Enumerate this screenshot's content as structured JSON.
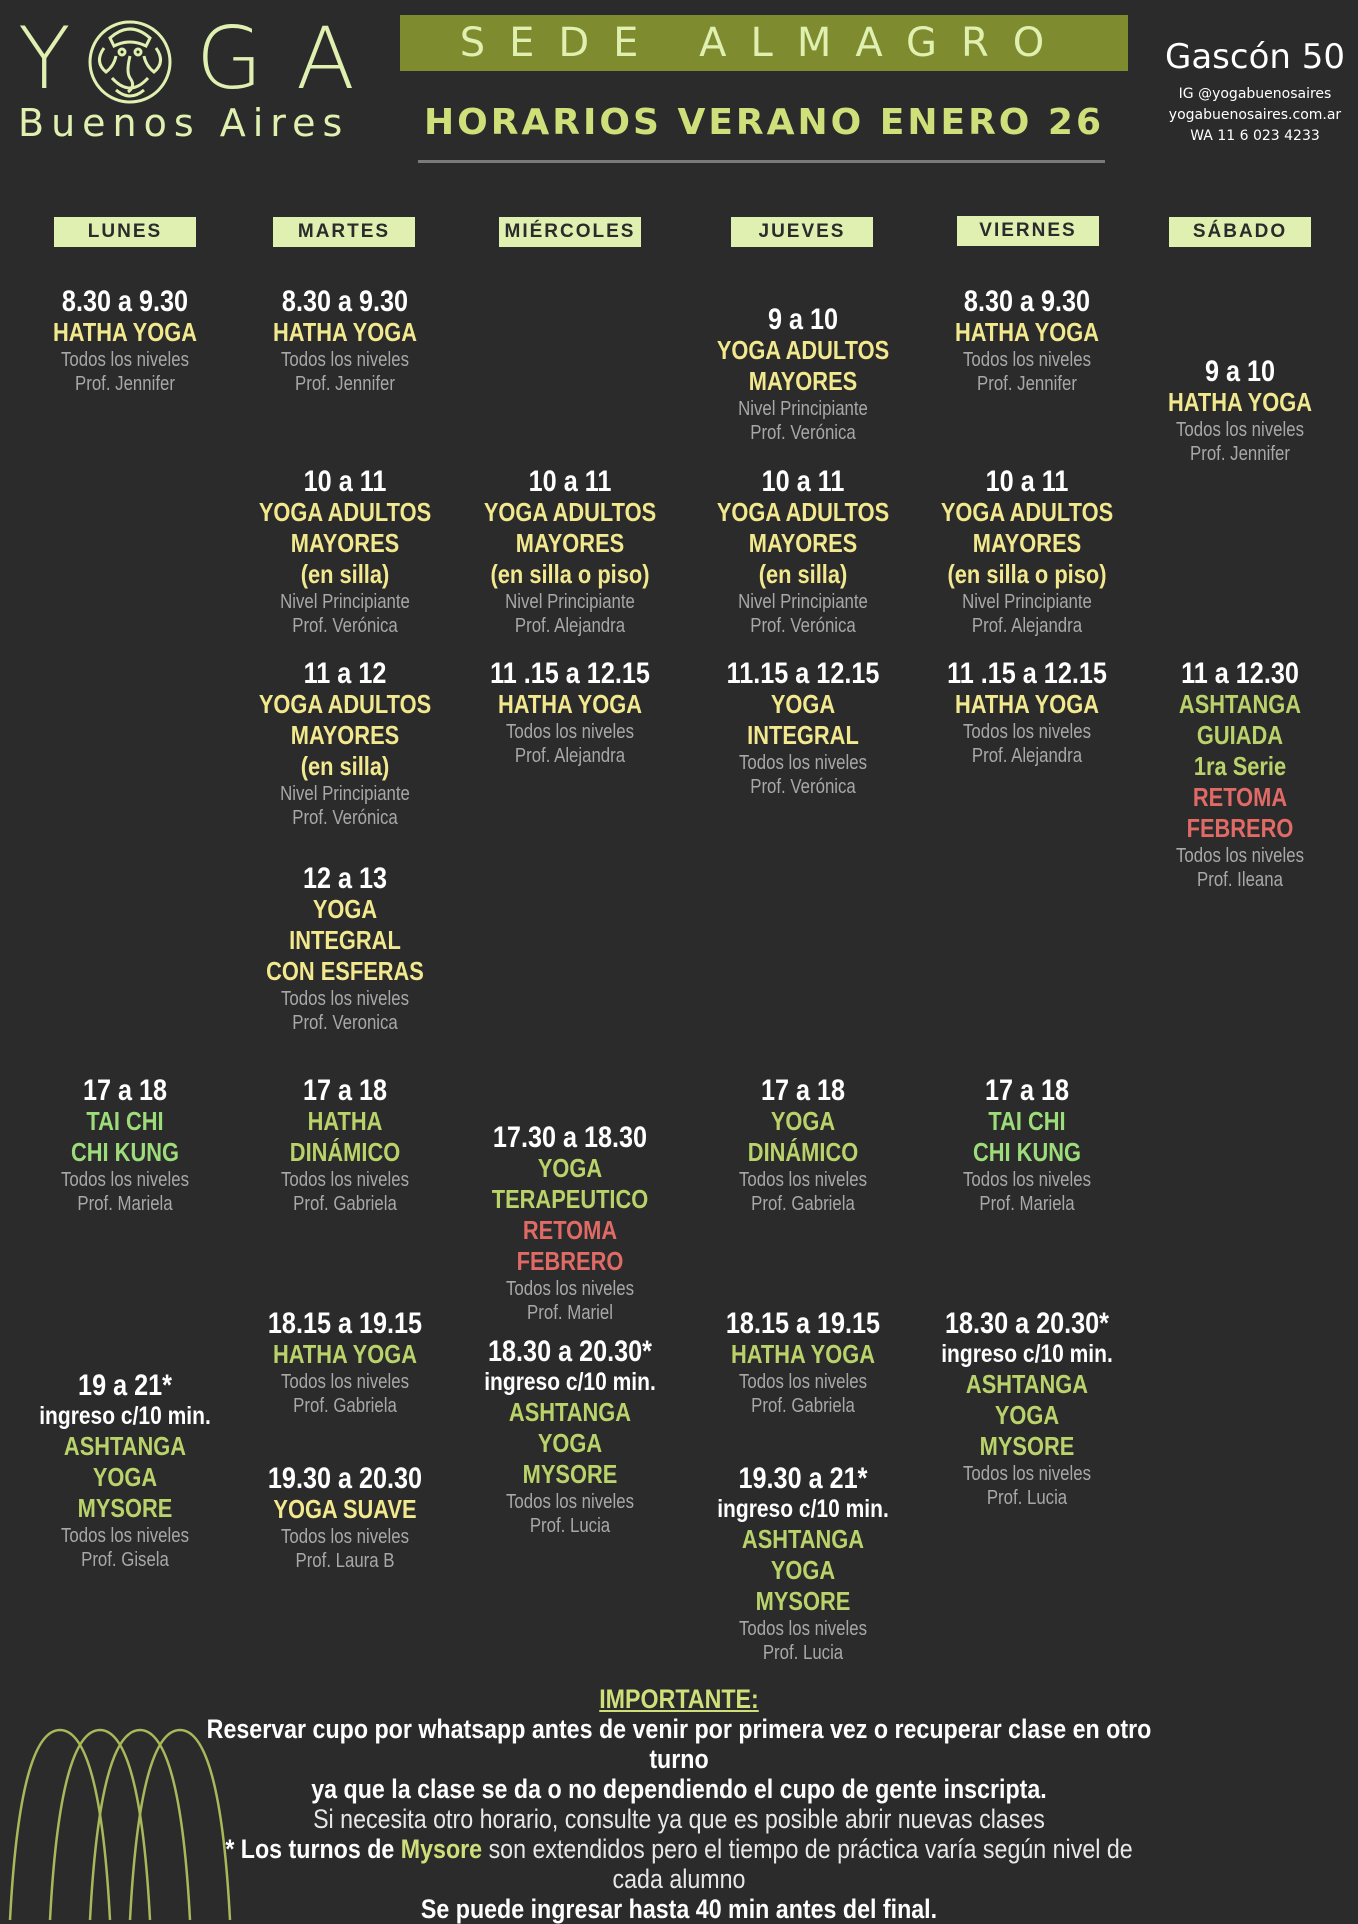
{
  "header": {
    "logo_letters": [
      "Y",
      "G",
      "A"
    ],
    "logo_city": "Buenos Aires",
    "sede": "SEDE ALMAGRO",
    "title": "HORARIOS VERANO ENERO 26",
    "address": "Gascón 50",
    "instagram": "IG @yogabuenosaires",
    "website": "yogabuenosaires.com.ar",
    "whatsapp": "WA 11 6 023 4233"
  },
  "days": [
    "LUNES",
    "MARTES",
    "MIÉRCOLES",
    "JUEVES",
    "VIERNES",
    "SÁBADO"
  ],
  "classes": {
    "lun_1": {
      "time": "8.30 a 9.30",
      "name": [
        "HATHA YOGA"
      ],
      "level": "Todos los niveles",
      "prof": "Prof. Jennifer"
    },
    "lun_2": {
      "time": "17 a 18",
      "name": [
        "TAI CHI",
        "CHI KUNG"
      ],
      "level": "Todos los niveles",
      "prof": "Prof. Mariela"
    },
    "lun_3": {
      "time": "19 a 21*",
      "entry": "ingreso c/10 min.",
      "name": [
        "ASHTANGA YOGA",
        "MYSORE"
      ],
      "level": "Todos los niveles",
      "prof": "Prof. Gisela"
    },
    "mar_1": {
      "time": "8.30 a 9.30",
      "name": [
        "HATHA YOGA"
      ],
      "level": "Todos los niveles",
      "prof": "Prof. Jennifer"
    },
    "mar_2": {
      "time": "10 a 11",
      "name": [
        "YOGA ADULTOS",
        "MAYORES",
        "(en silla)"
      ],
      "level": "Nivel Principiante",
      "prof": "Prof. Verónica"
    },
    "mar_3": {
      "time": "11 a 12",
      "name": [
        "YOGA ADULTOS",
        "MAYORES",
        "(en silla)"
      ],
      "level": "Nivel Principiante",
      "prof": "Prof. Verónica"
    },
    "mar_4": {
      "time": "12 a 13",
      "name": [
        "YOGA INTEGRAL",
        "CON ESFERAS"
      ],
      "level": "Todos los niveles",
      "prof": "Prof. Veronica"
    },
    "mar_5": {
      "time": "17 a 18",
      "name": [
        "HATHA DINÁMICO"
      ],
      "level": "Todos los niveles",
      "prof": "Prof. Gabriela"
    },
    "mar_6": {
      "time": "18.15 a 19.15",
      "name": [
        "HATHA YOGA"
      ],
      "level": "Todos los niveles",
      "prof": "Prof. Gabriela"
    },
    "mar_7": {
      "time": "19.30 a 20.30",
      "name": [
        "YOGA SUAVE"
      ],
      "level": "Todos los niveles",
      "prof": "Prof.  Laura B"
    },
    "mie_1": {
      "time": "10 a 11",
      "name": [
        "YOGA ADULTOS",
        "MAYORES",
        "(en silla o piso)"
      ],
      "level": "Nivel Principiante",
      "prof": "Prof. Alejandra"
    },
    "mie_2": {
      "time": "11 .15 a 12.15",
      "name": [
        "HATHA YOGA"
      ],
      "level": "Todos los niveles",
      "prof": "Prof. Alejandra"
    },
    "mie_3": {
      "time": "17.30  a 18.30",
      "name": [
        "YOGA TERAPEUTICO"
      ],
      "notice": "RETOMA FEBRERO",
      "level": "Todos los niveles",
      "prof": "Prof.  Mariel"
    },
    "mie_4": {
      "time": "18.30 a 20.30*",
      "entry": "ingreso c/10 min.",
      "name": [
        "ASHTANGA YOGA",
        "MYSORE"
      ],
      "level": "Todos los niveles",
      "prof": "Prof. Lucia"
    },
    "jue_1": {
      "time": "9 a 10",
      "name": [
        "YOGA ADULTOS",
        "MAYORES"
      ],
      "level": "Nivel Principiante",
      "prof": "Prof. Verónica"
    },
    "jue_2": {
      "time": "10 a 11",
      "name": [
        "YOGA ADULTOS",
        "MAYORES",
        "(en silla)"
      ],
      "level": "Nivel Principiante",
      "prof": "Prof. Verónica"
    },
    "jue_3": {
      "time": "11.15 a 12.15",
      "name": [
        "YOGA INTEGRAL"
      ],
      "level": "Todos los niveles",
      "prof": "Prof. Verónica"
    },
    "jue_4": {
      "time": "17 a 18",
      "name": [
        "YOGA DINÁMICO"
      ],
      "level": "Todos los niveles",
      "prof": "Prof. Gabriela"
    },
    "jue_5": {
      "time": "18.15 a 19.15",
      "name": [
        "HATHA YOGA"
      ],
      "level": "Todos los niveles",
      "prof": "Prof. Gabriela"
    },
    "jue_6": {
      "time": "19.30 a 21*",
      "entry": "ingreso c/10 min.",
      "name": [
        "ASHTANGA YOGA",
        "MYSORE"
      ],
      "level": "Todos los niveles",
      "prof": "Prof. Lucia"
    },
    "vie_1": {
      "time": "8.30 a 9.30",
      "name": [
        "HATHA YOGA"
      ],
      "level": "Todos los niveles",
      "prof": "Prof. Jennifer"
    },
    "vie_2": {
      "time": "10 a 11",
      "name": [
        "YOGA ADULTOS",
        "MAYORES",
        "(en silla o piso)"
      ],
      "level": "Nivel Principiante",
      "prof": "Prof. Alejandra"
    },
    "vie_3": {
      "time": "11 .15 a 12.15",
      "name": [
        "HATHA YOGA"
      ],
      "level": "Todos los niveles",
      "prof": "Prof. Alejandra"
    },
    "vie_4": {
      "time": "17 a 18",
      "name": [
        "TAI CHI",
        "CHI KUNG"
      ],
      "level": "Todos los niveles",
      "prof": "Prof. Mariela"
    },
    "vie_5": {
      "time": "18.30 a 20.30*",
      "entry": "ingreso c/10 min.",
      "name": [
        "ASHTANGA YOGA",
        "MYSORE"
      ],
      "level": "Todos los niveles",
      "prof": "Prof. Lucia"
    },
    "sab_1": {
      "time": "9 a 10",
      "name": [
        "HATHA YOGA"
      ],
      "level": "Todos los niveles",
      "prof": "Prof. Jennifer"
    },
    "sab_2": {
      "time": "11 a 12.30",
      "name": [
        "ASHTANGA GUIADA",
        "1ra Serie"
      ],
      "notice": "RETOMA FEBRERO",
      "level": "Todos los niveles",
      "prof": "Prof. Ileana"
    }
  },
  "footer": {
    "heading": "IMPORTANTE:",
    "line1": "Reservar cupo por whatsapp antes de venir por primera vez o recuperar clase en otro turno",
    "line2": "ya que la clase se da o no dependiendo el cupo de gente inscripta.",
    "line3": "Si necesita otro horario, consulte ya que es posible abrir nuevas clases",
    "line4_a": "* Los turnos de",
    "line4_b": "Mysore",
    "line4_c": "son extendidos pero el tiempo de práctica varía según nivel de cada alumno",
    "line5": "Se puede ingresar hasta 40 min antes del final."
  },
  "colors": {
    "background": "#2b2b2b",
    "accent_light": "#dff0b0",
    "sede_bar": "#7f8b2f",
    "class_yellow": "#f2e88e",
    "class_green": "#b9d36a",
    "class_light_green": "#9ddc7a",
    "notice_red": "#e06a66"
  }
}
